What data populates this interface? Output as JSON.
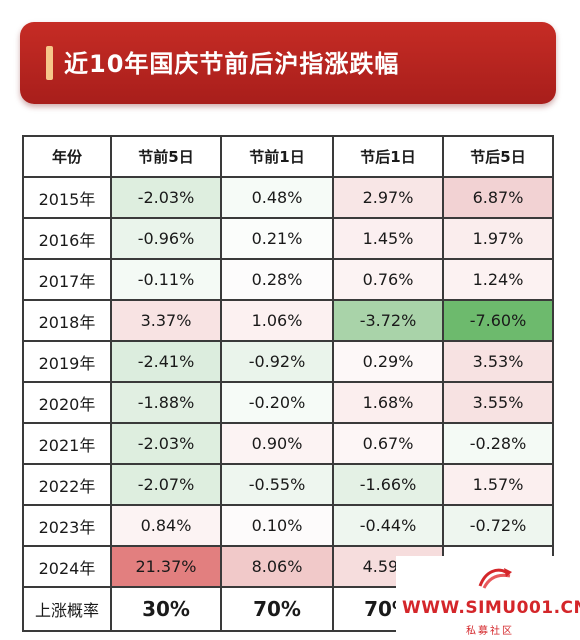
{
  "title": "近10年国庆节前后沪指涨跌幅",
  "table": {
    "headers": [
      "年份",
      "节前5日",
      "节前1日",
      "节后1日",
      "节后5日"
    ],
    "rows": [
      {
        "year": "2015年",
        "values": [
          "-2.03%",
          "0.48%",
          "2.97%",
          "6.87%"
        ],
        "bg": [
          "#deeedf",
          "#f6fbf7",
          "#f8e6e6",
          "#f2d2d3"
        ]
      },
      {
        "year": "2016年",
        "values": [
          "-0.96%",
          "0.21%",
          "1.45%",
          "1.97%"
        ],
        "bg": [
          "#eaf4eb",
          "#fbfdfb",
          "#fbeff0",
          "#faeded"
        ]
      },
      {
        "year": "2017年",
        "values": [
          "-0.11%",
          "0.28%",
          "0.76%",
          "1.24%"
        ],
        "bg": [
          "#f4faf5",
          "#fdfcfc",
          "#fcf3f3",
          "#fcf2f2"
        ]
      },
      {
        "year": "2018年",
        "values": [
          "3.37%",
          "1.06%",
          "-3.72%",
          "-7.60%"
        ],
        "bg": [
          "#f8e3e3",
          "#fcf1f1",
          "#a9d3a9",
          "#6dba6d"
        ]
      },
      {
        "year": "2019年",
        "values": [
          "-2.41%",
          "-0.92%",
          "0.29%",
          "3.53%"
        ],
        "bg": [
          "#dcedde",
          "#eaf4eb",
          "#fdf8f8",
          "#f7e2e2"
        ]
      },
      {
        "year": "2020年",
        "values": [
          "-1.88%",
          "-0.20%",
          "1.68%",
          "3.55%"
        ],
        "bg": [
          "#e1efe2",
          "#f6fbf7",
          "#fbeeee",
          "#f7e2e2"
        ]
      },
      {
        "year": "2021年",
        "values": [
          "-2.03%",
          "0.90%",
          "0.67%",
          "-0.28%"
        ],
        "bg": [
          "#deeedf",
          "#fcf3f3",
          "#fdf6f6",
          "#f4faf5"
        ]
      },
      {
        "year": "2022年",
        "values": [
          "-2.07%",
          "-0.55%",
          "-1.66%",
          "1.57%"
        ],
        "bg": [
          "#deeedf",
          "#eef6ef",
          "#e4f1e5",
          "#fbefef"
        ]
      },
      {
        "year": "2023年",
        "values": [
          "0.84%",
          "0.10%",
          "-0.44%",
          "-0.72%"
        ],
        "bg": [
          "#fcf3f3",
          "#fdfbfb",
          "#eef6ef",
          "#eef6ef"
        ]
      },
      {
        "year": "2024年",
        "values": [
          "21.37%",
          "8.06%",
          "4.59%",
          ""
        ],
        "bg": [
          "#e27f7f",
          "#f1c9c9",
          "#f6dddd",
          "#ffffff"
        ]
      }
    ],
    "probability_row": {
      "label": "上涨概率",
      "values": [
        "30%",
        "70%",
        "70%",
        ""
      ]
    }
  },
  "watermark": {
    "url": "WWW.SIMU001.CN",
    "subtitle": "私募社区",
    "brand_color": "#d4262a"
  },
  "colors": {
    "banner": "#b82521",
    "positive": "#e27f7f",
    "negative": "#6dba6d"
  }
}
